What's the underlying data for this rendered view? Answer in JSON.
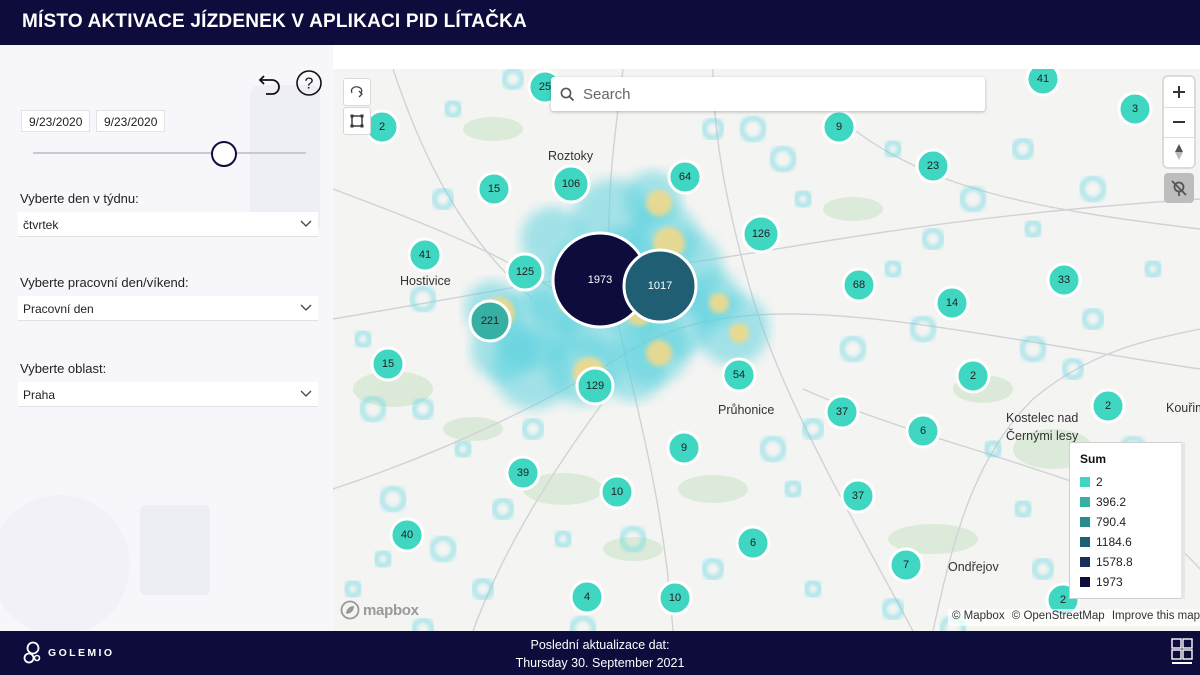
{
  "header": {
    "title": "MÍSTO AKTIVACE JÍZDENEK V APLIKACI PID LÍTAČKA"
  },
  "sidebar": {
    "date_from": "9/23/2020",
    "date_to": "9/23/2020",
    "slider_value": 0.7,
    "filter_day": {
      "label": "Vyberte den v týdnu:",
      "value": "čtvrtek"
    },
    "filter_workday": {
      "label": "Vyberte pracovní den/víkend:",
      "value": "Pracovní den"
    },
    "filter_area": {
      "label": "Vyberte oblast:",
      "value": "Praha"
    }
  },
  "map": {
    "search_placeholder": "Search",
    "places": [
      "Roztoky",
      "Hostivice",
      "Průhonice",
      "Kostelec nad",
      "Černými lesy",
      "Kouřim",
      "Ondřejov"
    ],
    "clusters": [
      {
        "label": "2",
        "value": 2
      },
      {
        "label": "25",
        "value": 25
      },
      {
        "label": "41",
        "value": 41
      },
      {
        "label": "3",
        "value": 3
      },
      {
        "label": "9",
        "value": 9
      },
      {
        "label": "23",
        "value": 23
      },
      {
        "label": "15",
        "value": 15
      },
      {
        "label": "106",
        "value": 106
      },
      {
        "label": "64",
        "value": 64
      },
      {
        "label": "126",
        "value": 126
      },
      {
        "label": "41",
        "value": 41
      },
      {
        "label": "125",
        "value": 125
      },
      {
        "label": "1973",
        "value": 1973
      },
      {
        "label": "1017",
        "value": 1017
      },
      {
        "label": "68",
        "value": 68
      },
      {
        "label": "33",
        "value": 33
      },
      {
        "label": "14",
        "value": 14
      },
      {
        "label": "221",
        "value": 221
      },
      {
        "label": "15",
        "value": 15
      },
      {
        "label": "129",
        "value": 129
      },
      {
        "label": "54",
        "value": 54
      },
      {
        "label": "2",
        "value": 2
      },
      {
        "label": "37",
        "value": 37
      },
      {
        "label": "2",
        "value": 2
      },
      {
        "label": "6",
        "value": 6
      },
      {
        "label": "9",
        "value": 9
      },
      {
        "label": "39",
        "value": 39
      },
      {
        "label": "10",
        "value": 10
      },
      {
        "label": "37",
        "value": 37
      },
      {
        "label": "40",
        "value": 40
      },
      {
        "label": "6",
        "value": 6
      },
      {
        "label": "7",
        "value": 7
      },
      {
        "label": "4",
        "value": 4
      },
      {
        "label": "10",
        "value": 10
      },
      {
        "label": "2",
        "value": 2
      }
    ],
    "legend": {
      "title": "Sum",
      "items": [
        {
          "label": "2",
          "color": "#3fd6c2"
        },
        {
          "label": "396.2",
          "color": "#37b0a4"
        },
        {
          "label": "790.4",
          "color": "#2a8b8b"
        },
        {
          "label": "1184.6",
          "color": "#1f5e73"
        },
        {
          "label": "1578.8",
          "color": "#1a2e5a"
        },
        {
          "label": "1973",
          "color": "#0e0c3c"
        }
      ]
    },
    "mapbox_logo": "mapbox",
    "attribution": {
      "mapbox": "© Mapbox",
      "osm": "© OpenStreetMap",
      "improve": "Improve this map"
    }
  },
  "footer": {
    "update_label": "Poslední aktualizace dat:",
    "update_date": "Thursday 30. September 2021",
    "brand": "GOLEMIO"
  }
}
